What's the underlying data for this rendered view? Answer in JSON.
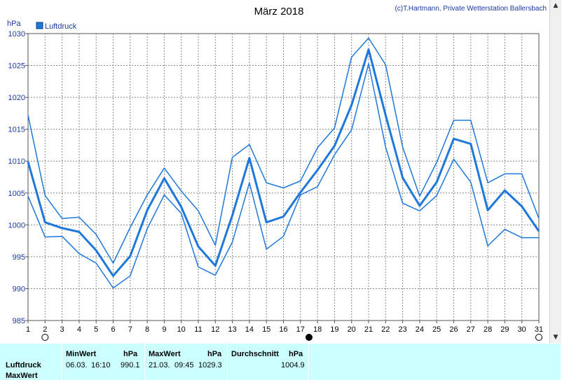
{
  "chart_data": {
    "type": "line",
    "title": "März 2018",
    "subtitle": "(c)T.Hartmann, Private Wetterstation Ballersbach",
    "ylabel": "hPa",
    "ylim": [
      985,
      1030
    ],
    "yticks": [
      985,
      990,
      995,
      1000,
      1005,
      1010,
      1015,
      1020,
      1025,
      1030
    ],
    "x": [
      1,
      2,
      3,
      4,
      5,
      6,
      7,
      8,
      9,
      10,
      11,
      12,
      13,
      14,
      15,
      16,
      17,
      18,
      19,
      20,
      21,
      22,
      23,
      24,
      25,
      26,
      27,
      28,
      29,
      30,
      31
    ],
    "grid": true,
    "legend": "top-left",
    "legend_entries": [
      "Luftdruck"
    ],
    "series": [
      {
        "name": "Luftdruck",
        "role": "mean",
        "color": "#1e78dc",
        "values": [
          1009.9,
          1000.4,
          999.5,
          998.9,
          996.0,
          992.0,
          995.1,
          1002.3,
          1007.3,
          1002.8,
          996.6,
          993.6,
          1001.5,
          1010.5,
          1000.4,
          1001.3,
          1005.1,
          1008.6,
          1012.4,
          1018.8,
          1027.5,
          1017.2,
          1007.4,
          1003.0,
          1006.7,
          1013.5,
          1012.7,
          1002.3,
          1005.4,
          1002.9,
          999.0
        ]
      },
      {
        "role": "max",
        "color": "#1e78dc",
        "values": [
          1017.2,
          1004.6,
          1001.0,
          1001.2,
          998.5,
          994.0,
          999.6,
          1004.7,
          1008.9,
          1005.3,
          1002.2,
          996.8,
          1010.6,
          1012.6,
          1006.6,
          1005.8,
          1006.9,
          1012.1,
          1015.2,
          1026.3,
          1029.3,
          1025.1,
          1012.2,
          1004.5,
          1009.8,
          1016.4,
          1016.4,
          1006.6,
          1008.0,
          1008.0,
          1001.0
        ]
      },
      {
        "role": "min",
        "color": "#1e78dc",
        "values": [
          1004.5,
          998.1,
          998.2,
          995.5,
          994.0,
          990.1,
          992.0,
          999.4,
          1004.7,
          1001.8,
          993.4,
          992.1,
          997.3,
          1006.6,
          996.2,
          998.2,
          1004.7,
          1006.0,
          1011.0,
          1014.9,
          1025.3,
          1012.2,
          1003.4,
          1002.2,
          1004.6,
          1010.3,
          1006.7,
          996.7,
          999.3,
          998.0,
          998.0
        ]
      }
    ],
    "markers": [
      {
        "x": 2,
        "type": "open-circle"
      },
      {
        "x": 17.5,
        "type": "filled-circle"
      },
      {
        "x": 31,
        "type": "open-circle"
      }
    ]
  },
  "stats": {
    "row_label_1": "Luftdruck",
    "row_label_2": "MaxWert",
    "min_header": "MinWert",
    "min_unit": "hPa",
    "min_date": "06.03.",
    "min_time": "16:10",
    "min_value": "990.1",
    "max_header": "MaxWert",
    "max_unit": "hPa",
    "max_date": "21.03.",
    "max_time": "09:45",
    "max_value": "1029.3",
    "avg_header": "Durchschnitt",
    "avg_unit": "hPa",
    "avg_value": "1004.9"
  },
  "scrollbar": {
    "up_icon": "▲",
    "down_icon": "▼"
  }
}
